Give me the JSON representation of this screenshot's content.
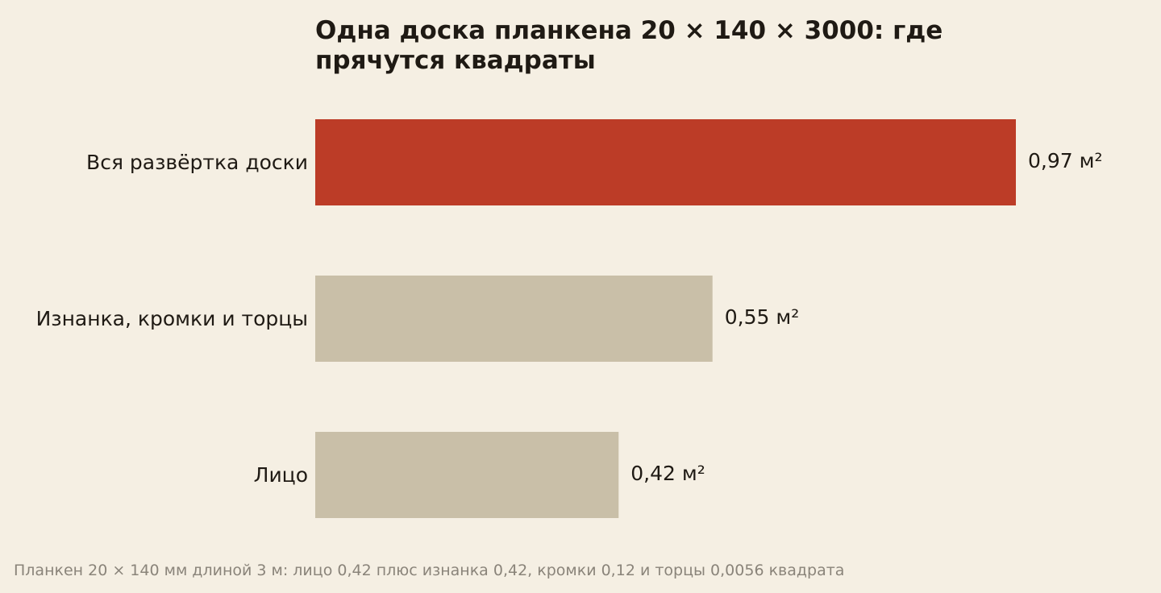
{
  "chart_data": {
    "type": "bar",
    "orientation": "horizontal",
    "title": "Одна доска планкена 20 × 140 × 3000: где прячутся квадраты",
    "categories": [
      "Вся развёртка доски",
      "Изнанка, кромки и торцы",
      "Лицо"
    ],
    "values": [
      0.97,
      0.55,
      0.42
    ],
    "value_labels": [
      "0,97 м²",
      "0,55 м²",
      "0,42 м²"
    ],
    "unit": "м²",
    "xlim": [
      0,
      0.97
    ],
    "grid": false,
    "legend": "none",
    "bar_colors": [
      "#bc3c27",
      "#c9bfa8",
      "#c9bfa8"
    ]
  },
  "footnote": "Планкен 20 × 140 мм длиной 3 м: лицо 0,42 плюс изнанка 0,42, кромки 0,12 и торцы 0,0056 квадрата",
  "colors": {
    "background": "#f5efe3",
    "highlight": "#bc3c27",
    "muted": "#c9bfa8",
    "text": "#1f1a14",
    "footnote": "#8a847a"
  }
}
